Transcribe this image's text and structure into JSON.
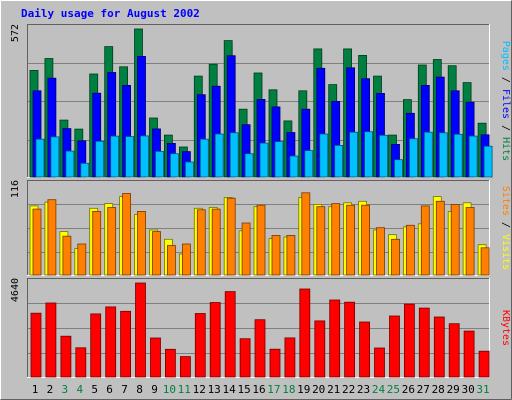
{
  "chart_data": {
    "type": "bar",
    "title": "Daily usage for August 2002",
    "categories": [
      "1",
      "2",
      "3",
      "4",
      "5",
      "6",
      "7",
      "8",
      "9",
      "10",
      "11",
      "12",
      "13",
      "14",
      "15",
      "16",
      "17",
      "18",
      "19",
      "20",
      "21",
      "22",
      "23",
      "24",
      "25",
      "26",
      "27",
      "28",
      "29",
      "30",
      "31"
    ],
    "weekend_days": [
      "3",
      "4",
      "10",
      "11",
      "17",
      "18",
      "24",
      "25",
      "31"
    ],
    "panels": [
      {
        "id": "top",
        "ymax_label": "572",
        "ylim": [
          0,
          572
        ],
        "series": [
          {
            "name": "Hits",
            "color": "#008040",
            "values": [
              412,
              458,
              220,
              185,
              398,
              504,
              426,
              572,
              228,
              162,
              116,
              390,
              436,
              527,
              262,
              402,
              337,
              217,
              333,
              495,
              357,
              495,
              470,
              390,
              162,
              299,
              433,
              454,
              430,
              365,
              208
            ]
          },
          {
            "name": "Files",
            "color": "#0000ff",
            "values": [
              333,
              382,
              187,
              140,
              324,
              404,
              354,
              466,
              186,
              130,
              98,
              318,
              351,
              469,
              202,
              300,
              271,
              172,
              262,
              420,
              292,
              422,
              380,
              323,
              126,
              246,
              354,
              386,
              333,
              289,
              163
            ]
          },
          {
            "name": "Pages",
            "color": "#00c0ff",
            "values": [
              146,
              155,
              100,
              53,
              138,
              158,
              156,
              159,
              99,
              90,
              58,
              146,
              166,
              171,
              90,
              131,
              137,
              81,
              102,
              166,
              122,
              173,
              175,
              161,
              67,
              148,
              173,
              171,
              165,
              158,
              119
            ]
          }
        ]
      },
      {
        "id": "middle",
        "ymax_label": "116",
        "ylim": [
          0,
          116
        ],
        "series": [
          {
            "name": "Visits",
            "color": "#ffff00",
            "values": [
              89,
              94,
              56,
              34,
              86,
              92,
              101,
              78,
              58,
              46,
              27,
              86,
              87,
              100,
              57,
              88,
              47,
              49,
              100,
              91,
              88,
              93,
              95,
              58,
              52,
              62,
              66,
              101,
              82,
              93,
              39
            ]
          },
          {
            "name": "Sites",
            "color": "#ff8000",
            "values": [
              85,
              97,
              50,
              40,
              82,
              87,
              105,
              82,
              56,
              38,
              40,
              84,
              85,
              99,
              67,
              90,
              51,
              51,
              106,
              88,
              92,
              90,
              90,
              61,
              46,
              64,
              89,
              95,
              91,
              87,
              35
            ]
          }
        ]
      },
      {
        "id": "bottom",
        "ymax_label": "4640",
        "ylim": [
          0,
          4640
        ],
        "series": [
          {
            "name": "KBytes",
            "color": "#ff0000",
            "values": [
              3150,
              3654,
              2016,
              1441,
              3114,
              3462,
              3245,
              4640,
              1924,
              1368,
              1008,
              3136,
              3676,
              4217,
              1893,
              2830,
              1373,
              1930,
              4346,
              2768,
              3800,
              3690,
              2714,
              1431,
              3010,
              3600,
              3400,
              2960,
              2630,
              2268,
              1272
            ]
          }
        ]
      }
    ],
    "right_labels": [
      [
        {
          "text": "Pages",
          "color": "#00c0ff"
        },
        {
          "text": " / ",
          "color": "#000000"
        },
        {
          "text": "Files",
          "color": "#0000ff"
        },
        {
          "text": " / ",
          "color": "#000000"
        },
        {
          "text": "Hits",
          "color": "#008040"
        }
      ],
      [
        {
          "text": "Sites",
          "color": "#ff8000"
        },
        {
          "text": " / ",
          "color": "#000000"
        },
        {
          "text": "Visits",
          "color": "#ffff00"
        }
      ],
      [
        {
          "text": "KBytes",
          "color": "#ff0000"
        }
      ]
    ],
    "colors": {
      "background": "#c0c0c0",
      "title": "#0000ff",
      "gridline": "#808080",
      "weekday_label": "#000000",
      "weekend_label": "#008040"
    }
  }
}
